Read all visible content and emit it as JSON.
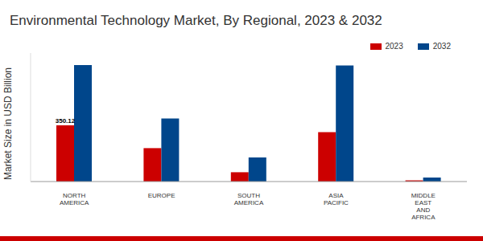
{
  "chart_data": {
    "type": "bar",
    "title": "Environmental Technology Market, By Regional, 2023 & 2032",
    "y_label": "Market Size in USD Billion",
    "categories": [
      "NORTH AMERICA",
      "EUROPE",
      "SOUTH AMERICA",
      "ASIA PACIFIC",
      "MIDDLE EAST AND AFRICA"
    ],
    "series": [
      {
        "name": "2023",
        "color": "#cc0000",
        "values": [
          350.12,
          208,
          58,
          308,
          8
        ],
        "value_labels": [
          "350.12",
          null,
          null,
          null,
          null
        ]
      },
      {
        "name": "2032",
        "color": "#00468b",
        "values": [
          725,
          392,
          150,
          722,
          25
        ]
      }
    ],
    "ylim": [
      0,
      800
    ],
    "yticks": [],
    "grid": false,
    "legend": "top-right",
    "tick_labels": "x"
  }
}
